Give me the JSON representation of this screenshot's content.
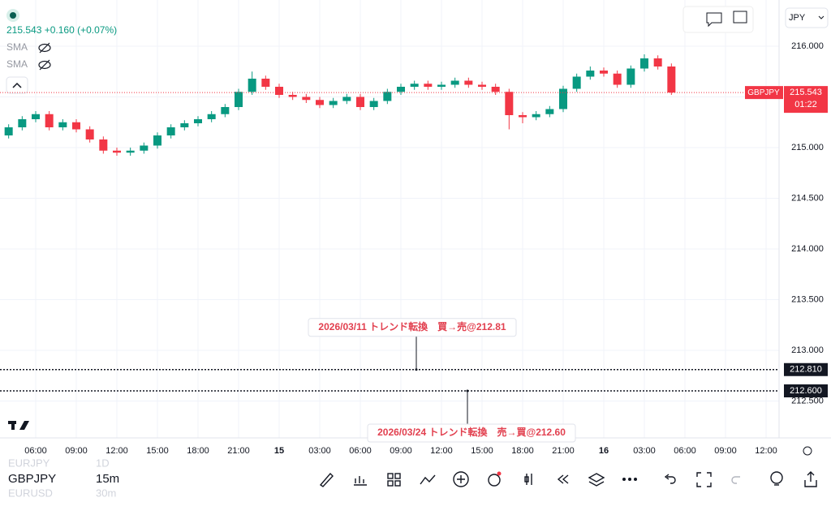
{
  "header": {
    "status": "215.543 +0.160 (+0.07%)",
    "indicators": [
      "SMA",
      "SMA"
    ],
    "currency": "JPY"
  },
  "chart_data": {
    "type": "candlestick",
    "x": [
      4,
      5,
      6,
      7,
      8,
      9,
      10,
      11,
      12,
      13,
      14,
      15,
      16,
      17,
      18,
      19,
      20,
      21,
      22,
      23,
      24,
      25,
      26,
      27,
      28,
      29,
      30,
      31,
      32,
      33,
      34,
      35,
      36,
      37,
      38,
      39,
      40,
      41,
      42,
      43,
      44,
      45,
      46,
      47,
      48,
      49,
      50,
      51,
      52,
      53
    ],
    "open": [
      215.12,
      215.2,
      215.28,
      215.33,
      215.2,
      215.25,
      215.18,
      215.08,
      214.97,
      214.95,
      214.97,
      215.02,
      215.12,
      215.2,
      215.24,
      215.28,
      215.33,
      215.4,
      215.55,
      215.68,
      215.6,
      215.52,
      215.5,
      215.47,
      215.42,
      215.46,
      215.5,
      215.4,
      215.46,
      215.55,
      215.6,
      215.63,
      215.6,
      215.62,
      215.66,
      215.62,
      215.6,
      215.55,
      215.32,
      215.3,
      215.33,
      215.38,
      215.58,
      215.7,
      215.76,
      215.73,
      215.62,
      215.78,
      215.88,
      215.8
    ],
    "high": [
      215.23,
      215.31,
      215.36,
      215.36,
      215.28,
      215.28,
      215.21,
      215.11,
      215.0,
      215.0,
      215.05,
      215.15,
      215.23,
      215.27,
      215.31,
      215.36,
      215.43,
      215.58,
      215.75,
      215.71,
      215.63,
      215.55,
      215.53,
      215.5,
      215.49,
      215.53,
      215.53,
      215.49,
      215.58,
      215.63,
      215.66,
      215.66,
      215.65,
      215.69,
      215.69,
      215.65,
      215.63,
      215.58,
      215.35,
      215.36,
      215.41,
      215.61,
      215.73,
      215.8,
      215.79,
      215.76,
      215.81,
      215.92,
      215.91,
      215.83
    ],
    "low": [
      215.09,
      215.17,
      215.25,
      215.17,
      215.17,
      215.15,
      215.05,
      214.94,
      214.92,
      214.92,
      214.94,
      214.99,
      215.09,
      215.17,
      215.21,
      215.25,
      215.3,
      215.37,
      215.52,
      215.57,
      215.49,
      215.47,
      215.44,
      215.39,
      215.39,
      215.43,
      215.37,
      215.37,
      215.43,
      215.52,
      215.57,
      215.57,
      215.57,
      215.59,
      215.59,
      215.57,
      215.52,
      215.18,
      215.24,
      215.27,
      215.3,
      215.35,
      215.55,
      215.67,
      215.7,
      215.59,
      215.59,
      215.75,
      215.77,
      215.52
    ],
    "close": [
      215.2,
      215.28,
      215.33,
      215.2,
      215.25,
      215.18,
      215.08,
      214.97,
      214.95,
      214.97,
      215.02,
      215.12,
      215.2,
      215.24,
      215.28,
      215.33,
      215.4,
      215.55,
      215.68,
      215.6,
      215.52,
      215.5,
      215.47,
      215.42,
      215.46,
      215.5,
      215.4,
      215.46,
      215.55,
      215.6,
      215.63,
      215.6,
      215.62,
      215.66,
      215.62,
      215.6,
      215.55,
      215.32,
      215.3,
      215.33,
      215.38,
      215.58,
      215.7,
      215.76,
      215.73,
      215.62,
      215.78,
      215.88,
      215.8,
      215.543
    ],
    "up_color": "#089981",
    "down_color": "#f23645",
    "xlim": [
      3.36,
      60.96
    ],
    "xticks": [
      {
        "value": 6,
        "label": "06:00"
      },
      {
        "value": 9,
        "label": "09:00"
      },
      {
        "value": 12,
        "label": "12:00"
      },
      {
        "value": 15,
        "label": "15:00"
      },
      {
        "value": 18,
        "label": "18:00"
      },
      {
        "value": 21,
        "label": "21:00"
      },
      {
        "value": 24,
        "label": "15"
      },
      {
        "value": 27,
        "label": "03:00"
      },
      {
        "value": 30,
        "label": "06:00"
      },
      {
        "value": 33,
        "label": "09:00"
      },
      {
        "value": 36,
        "label": "12:00"
      },
      {
        "value": 39,
        "label": "15:00"
      },
      {
        "value": 42,
        "label": "18:00"
      },
      {
        "value": 45,
        "label": "21:00"
      },
      {
        "value": 48,
        "label": "16"
      },
      {
        "value": 51,
        "label": "03:00"
      },
      {
        "value": 54,
        "label": "06:00"
      },
      {
        "value": 57,
        "label": "09:00"
      },
      {
        "value": 60,
        "label": "12:00"
      }
    ],
    "ylim": [
      212.136,
      216.456
    ],
    "yticks": [
      {
        "value": 212.5,
        "label": "212.500"
      },
      {
        "value": 213,
        "label": "213.000"
      },
      {
        "value": 213.5,
        "label": "213.500"
      },
      {
        "value": 214,
        "label": "214.000"
      },
      {
        "value": 214.5,
        "label": "214.500"
      },
      {
        "value": 215,
        "label": "215.000"
      },
      {
        "value": 215.5,
        "label": "215.500"
      },
      {
        "value": 216,
        "label": "216.000"
      }
    ],
    "grid": true,
    "price_line": {
      "symbol": "GBPJPY",
      "value": 215.543,
      "countdown": "01:22"
    },
    "levels": [
      {
        "value": 212.81,
        "label": "212.810",
        "note": "2026/03/11 トレンド転換　買→売@212.81"
      },
      {
        "value": 212.6,
        "label": "212.600",
        "note": "2026/03/24 トレンド転換　売→買@212.60"
      }
    ]
  },
  "toolbar": {
    "symbol": "GBPJPY",
    "interval": "15m",
    "recent_symbols": [
      "EURJPY",
      "EURUSD"
    ],
    "recent_intervals": [
      "1D",
      "30m"
    ]
  }
}
